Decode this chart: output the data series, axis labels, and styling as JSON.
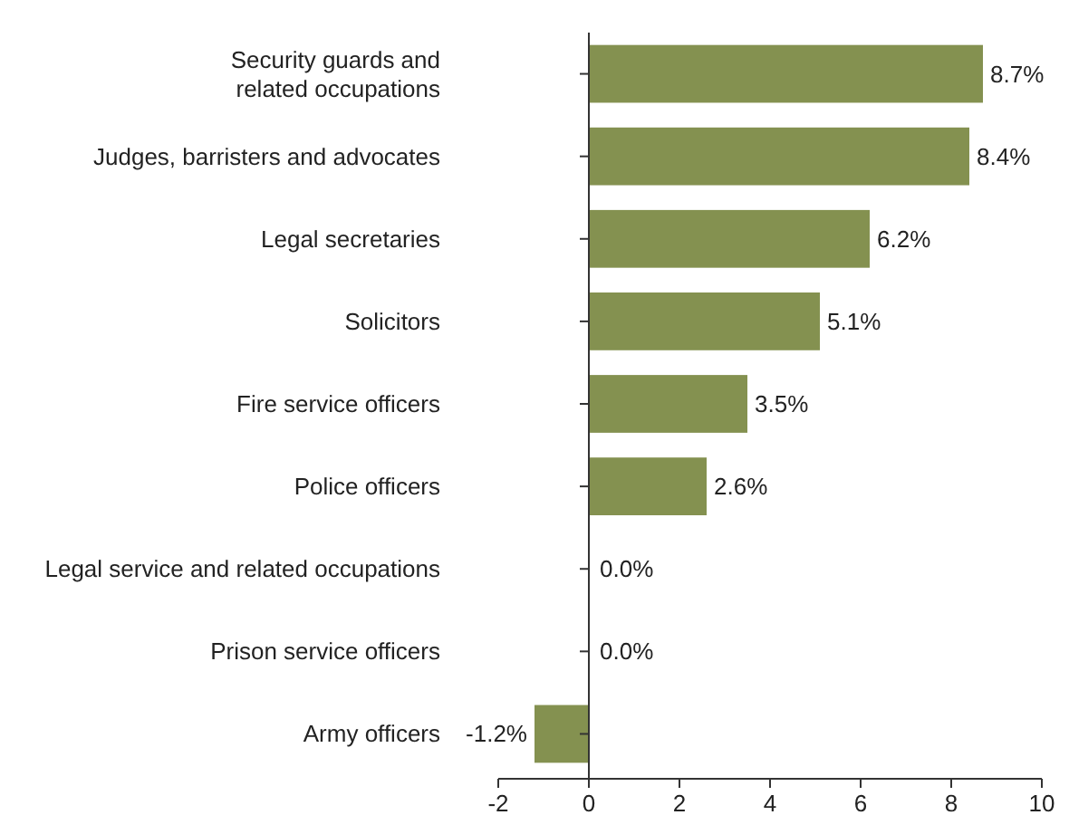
{
  "chart_data": {
    "type": "bar",
    "orientation": "horizontal",
    "categories": [
      "Security guards and related occupations",
      "Judges, barristers and advocates",
      "Legal secretaries",
      "Solicitors",
      "Fire service officers",
      "Police officers",
      "Legal service and related occupations",
      "Prison service officers",
      "Army officers"
    ],
    "values": [
      8.7,
      8.4,
      6.2,
      5.1,
      3.5,
      2.6,
      0.0,
      0.0,
      -1.2
    ],
    "value_labels": [
      "8.7%",
      "8.4%",
      "6.2%",
      "5.1%",
      "3.5%",
      "2.6%",
      "0.0%",
      "0.0%",
      "-1.2%"
    ],
    "color": "#849150",
    "xlim": [
      -2,
      10
    ],
    "xticks": [
      -2,
      0,
      2,
      4,
      6,
      8,
      10
    ]
  }
}
